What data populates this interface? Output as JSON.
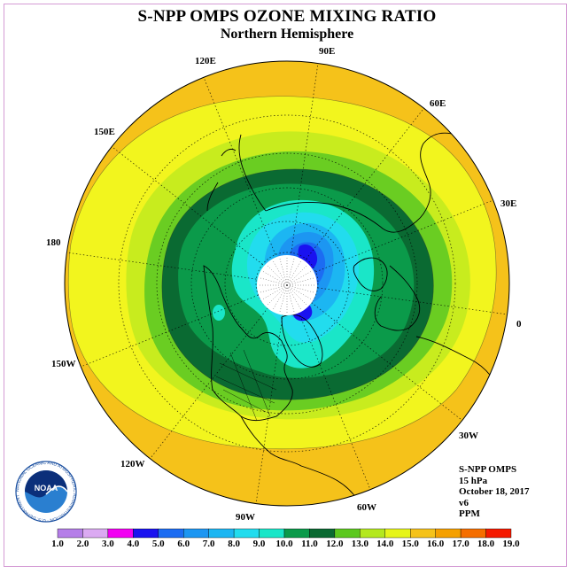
{
  "title": "S-NPP OMPS OZONE MIXING RATIO",
  "subtitle": "Northern Hemisphere",
  "longitude_labels": {
    "90E": "90E",
    "60E": "60E",
    "30E": "30E",
    "0": "0",
    "30W": "30W",
    "60W": "60W",
    "90W": "90W",
    "120W": "120W",
    "150W": "150W",
    "180": "180",
    "150E": "150E",
    "120E": "120E"
  },
  "info": {
    "instrument": "S-NPP OMPS",
    "level": "15 hPa",
    "date": "October 18, 2017",
    "version": "v6",
    "units": "PPM"
  },
  "logo": {
    "text": "NOAA",
    "ring_text": "NATIONAL OCEANIC AND ATMOSPHERIC ADMINISTRATION · U.S. DEPARTMENT OF COMMERCE"
  },
  "color_scale": {
    "ticks": [
      "1.0",
      "2.0",
      "3.0",
      "4.0",
      "5.0",
      "6.0",
      "7.0",
      "8.0",
      "9.0",
      "10.0",
      "11.0",
      "12.0",
      "13.0",
      "14.0",
      "15.0",
      "16.0",
      "17.0",
      "18.0",
      "19.0"
    ],
    "colors": [
      "#b57ee8",
      "#dbaaf2",
      "#f200f2",
      "#1a12f0",
      "#1c6cf2",
      "#1c96f2",
      "#1cb6f2",
      "#22dcee",
      "#1ae6c8",
      "#0b9a4a",
      "#0a6a32",
      "#5cc81e",
      "#b4e81e",
      "#e6f51a",
      "#f5c21a",
      "#f5a000",
      "#f56e00",
      "#f51a00",
      "#8a5a3a"
    ]
  },
  "map": {
    "projection": "north polar stereographic",
    "contour_levels_ppm": [
      9.0,
      10.0,
      11.0,
      12.0,
      13.0,
      14.0,
      15.0
    ],
    "polar_night_missing": true
  }
}
